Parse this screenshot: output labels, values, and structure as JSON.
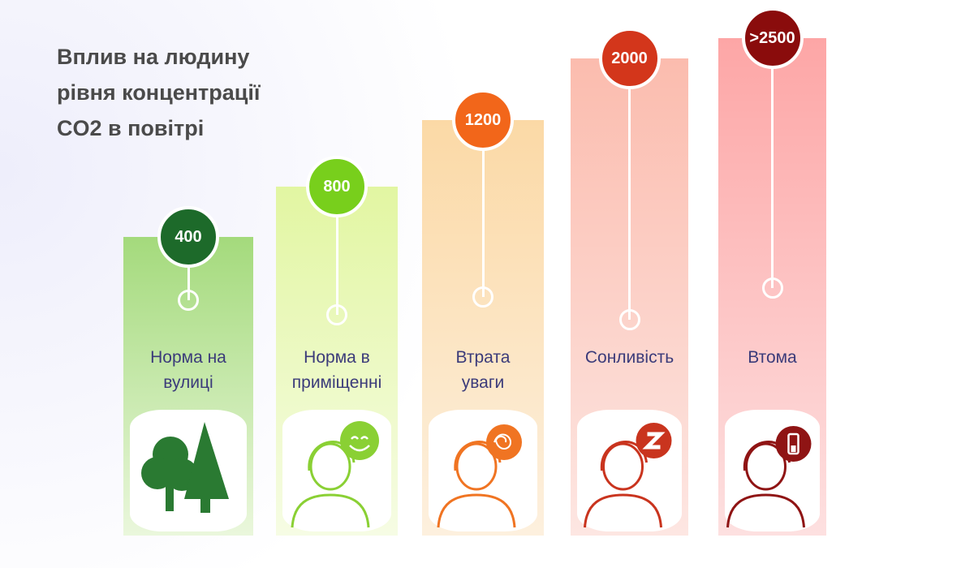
{
  "title": [
    "Вплив на людину",
    "рівня концентрації",
    "CO2 в повітрі"
  ],
  "items": [
    {
      "value": "400",
      "label": "Норма на вулиці"
    },
    {
      "value": "800",
      "label": "Норма в приміщенні"
    },
    {
      "value": "1200",
      "label": "Втрата уваги"
    },
    {
      "value": "2000",
      "label": "Сонливість"
    },
    {
      "value": ">2500",
      "label": "Втома"
    }
  ]
}
